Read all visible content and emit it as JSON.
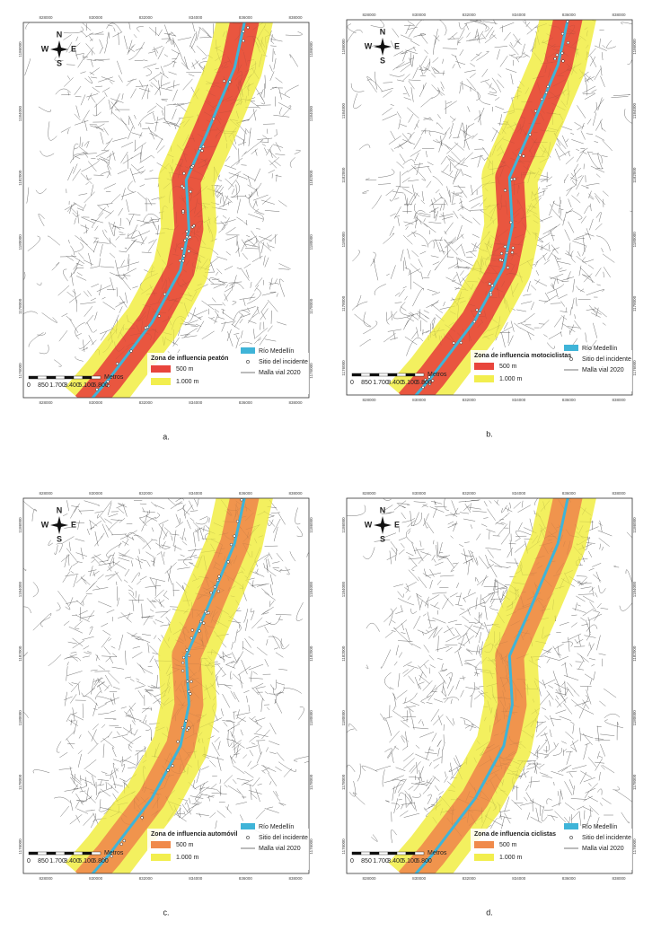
{
  "panels": [
    {
      "caption": "a.",
      "legend_title": "Zona de influencia peatón",
      "color_500": "#e8453c",
      "color_1000": "#f2ee4e",
      "incidents": true
    },
    {
      "caption": "b.",
      "legend_title": "Zona de influencia motociclistas",
      "color_500": "#e8453c",
      "color_1000": "#f2ee4e",
      "incidents": true
    },
    {
      "caption": "c.",
      "legend_title": "Zona de influencia automóvil",
      "color_500": "#f08a4b",
      "color_1000": "#f2ee4e",
      "incidents": true
    },
    {
      "caption": "d.",
      "legend_title": "Zona de influencia ciclistas",
      "color_500": "#f08a4b",
      "color_1000": "#f2ee4e",
      "incidents": false
    }
  ],
  "legend": {
    "river": "Río Medellín",
    "incident": "Sitio del incidente",
    "roads": "Malla vial 2020",
    "buffer_500": "500 m",
    "buffer_1000": "1.000 m"
  },
  "scale": {
    "unit": "Metros",
    "labels": [
      "0",
      "850",
      "1.700",
      "3.400",
      "5.100",
      "6.800"
    ]
  },
  "compass": {
    "n": "N",
    "s": "S",
    "e": "E",
    "w": "W"
  },
  "grid_labels": {
    "x": [
      "828000",
      "830000",
      "832000",
      "834000",
      "836000",
      "838000"
    ],
    "y": [
      "1186000",
      "1184000",
      "1182000",
      "1180000",
      "1178000",
      "1176000"
    ]
  }
}
